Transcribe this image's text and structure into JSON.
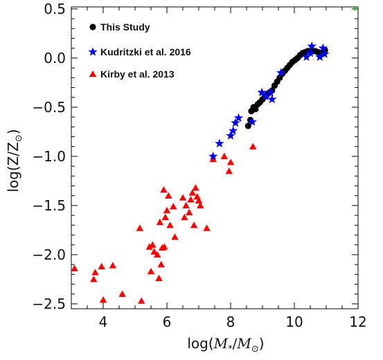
{
  "chart_data": {
    "type": "scatter",
    "xlabel": "log(M*/M⊙)",
    "ylabel": "log(Z/Z⊙)",
    "xlim": [
      3,
      12
    ],
    "ylim": [
      -2.55,
      0.52
    ],
    "xticks": [
      4,
      6,
      8,
      10,
      12
    ],
    "yticks": [
      0.5,
      0.0,
      -0.5,
      -1.0,
      -1.5,
      -2.0,
      -2.5
    ],
    "xtick_labels": [
      "4",
      "6",
      "8",
      "10",
      "12"
    ],
    "ytick_labels": [
      "0.5",
      "0.0",
      "−0.5",
      "−1.0",
      "−1.5",
      "−2.0",
      "−2.5"
    ],
    "grid": false,
    "legend_position": "top-left",
    "series": [
      {
        "name": "This Study",
        "marker": "circle",
        "color": "#000000",
        "points": [
          [
            8.55,
            -0.69
          ],
          [
            8.62,
            -0.63
          ],
          [
            8.65,
            -0.54
          ],
          [
            8.72,
            -0.5
          ],
          [
            8.78,
            -0.52
          ],
          [
            8.85,
            -0.47
          ],
          [
            8.92,
            -0.45
          ],
          [
            9.0,
            -0.42
          ],
          [
            9.08,
            -0.39
          ],
          [
            9.15,
            -0.37
          ],
          [
            9.22,
            -0.35
          ],
          [
            9.3,
            -0.33
          ],
          [
            9.38,
            -0.28
          ],
          [
            9.46,
            -0.24
          ],
          [
            9.54,
            -0.2
          ],
          [
            9.62,
            -0.16
          ],
          [
            9.7,
            -0.13
          ],
          [
            9.78,
            -0.1
          ],
          [
            9.86,
            -0.07
          ],
          [
            9.94,
            -0.04
          ],
          [
            10.02,
            -0.02
          ],
          [
            10.1,
            0.0
          ],
          [
            10.18,
            0.03
          ],
          [
            10.26,
            0.05
          ],
          [
            10.34,
            0.06
          ],
          [
            10.42,
            0.07
          ],
          [
            10.5,
            0.07
          ],
          [
            10.58,
            0.07
          ],
          [
            10.66,
            0.07
          ],
          [
            10.74,
            0.06
          ],
          [
            10.82,
            0.05
          ],
          [
            10.9,
            0.06
          ],
          [
            10.96,
            0.08
          ]
        ]
      },
      {
        "name": "Kudritzki et al. 2016",
        "marker": "star",
        "color": "#0000ff",
        "points": [
          [
            7.45,
            -1.0
          ],
          [
            7.65,
            -0.87
          ],
          [
            8.0,
            -0.79
          ],
          [
            8.08,
            -0.74
          ],
          [
            8.15,
            -0.66
          ],
          [
            8.25,
            -0.61
          ],
          [
            8.68,
            -0.65
          ],
          [
            8.98,
            -0.35
          ],
          [
            9.1,
            -0.39
          ],
          [
            9.25,
            -0.35
          ],
          [
            9.3,
            -0.42
          ],
          [
            9.58,
            -0.15
          ],
          [
            10.38,
            0.01
          ],
          [
            10.5,
            0.05
          ],
          [
            10.55,
            0.12
          ],
          [
            10.8,
            0.01
          ],
          [
            10.9,
            0.1
          ],
          [
            10.95,
            0.04
          ]
        ]
      },
      {
        "name": "Kirby et al. 2013",
        "marker": "triangle",
        "color": "#ff0000",
        "points": [
          [
            3.1,
            -2.14
          ],
          [
            3.7,
            -2.25
          ],
          [
            3.75,
            -2.18
          ],
          [
            3.95,
            -2.12
          ],
          [
            4.0,
            -2.46
          ],
          [
            4.3,
            -2.11
          ],
          [
            4.6,
            -2.4
          ],
          [
            5.15,
            -1.73
          ],
          [
            5.2,
            -2.47
          ],
          [
            5.45,
            -1.92
          ],
          [
            5.5,
            -2.17
          ],
          [
            5.55,
            -1.9
          ],
          [
            5.6,
            -1.97
          ],
          [
            5.7,
            -2.0
          ],
          [
            5.75,
            -2.24
          ],
          [
            5.78,
            -1.67
          ],
          [
            5.82,
            -2.1
          ],
          [
            5.85,
            -1.93
          ],
          [
            5.9,
            -1.34
          ],
          [
            5.92,
            -1.92
          ],
          [
            5.95,
            -1.62
          ],
          [
            6.0,
            -1.55
          ],
          [
            6.05,
            -1.4
          ],
          [
            6.1,
            -1.7
          ],
          [
            6.2,
            -1.51
          ],
          [
            6.25,
            -1.82
          ],
          [
            6.5,
            -1.42
          ],
          [
            6.55,
            -1.62
          ],
          [
            6.6,
            -1.5
          ],
          [
            6.7,
            -1.57
          ],
          [
            6.75,
            -1.44
          ],
          [
            6.8,
            -1.37
          ],
          [
            6.85,
            -1.7
          ],
          [
            6.9,
            -1.32
          ],
          [
            6.95,
            -1.41
          ],
          [
            7.0,
            -1.45
          ],
          [
            7.05,
            -1.5
          ],
          [
            7.25,
            -1.73
          ],
          [
            7.45,
            -1.03
          ],
          [
            7.8,
            -1.0
          ],
          [
            7.95,
            -1.15
          ],
          [
            8.0,
            -1.06
          ],
          [
            8.7,
            -0.9
          ]
        ]
      }
    ],
    "annotations": [
      {
        "marker": "circle",
        "color": "#00cc00",
        "points": [
          [
            10.5,
            0.12
          ],
          [
            11.9,
            0.5
          ]
        ]
      }
    ]
  }
}
